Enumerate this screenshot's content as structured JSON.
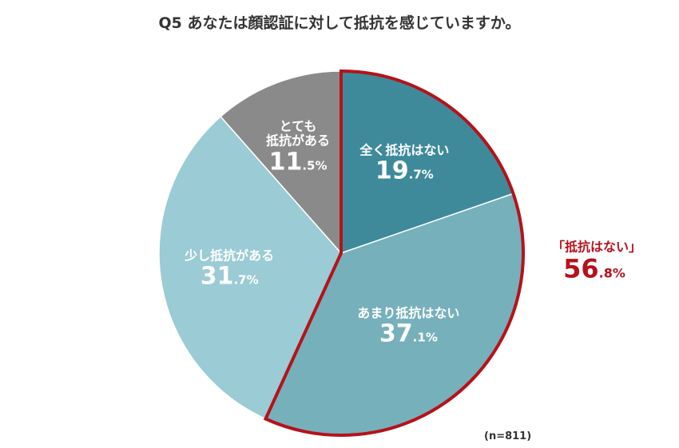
{
  "chart_data": {
    "type": "pie",
    "title": "Q5 あなたは顔認証に対して抵抗を感じていますか。",
    "slices": [
      {
        "label": "全く抵抗はない",
        "value": 19.7,
        "int": "19",
        "dec": ".7%",
        "color": "#3e8a9a"
      },
      {
        "label": "あまり抵抗はない",
        "value": 37.1,
        "int": "37",
        "dec": ".1%",
        "color": "#76b0ba"
      },
      {
        "label": "少し抵抗がある",
        "value": 31.7,
        "int": "31",
        "dec": ".7%",
        "color": "#9bcbd4"
      },
      {
        "label": "とても\n抵抗がある",
        "value": 11.5,
        "int": "11",
        "dec": ".5%",
        "color": "#8a8a8a"
      }
    ],
    "highlight_group": {
      "label": "「抵抗はない」",
      "value": 56.8,
      "int": "56",
      "dec": ".8%",
      "color": "#b5121b",
      "slices": [
        0,
        1
      ]
    },
    "note": "(n=811)",
    "start": "top",
    "direction": "clockwise"
  }
}
